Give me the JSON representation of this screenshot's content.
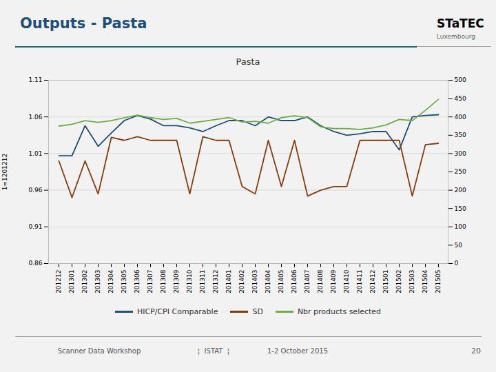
{
  "chart_data": {
    "type": "line",
    "title": "Pasta",
    "ylabel": "1=1201212",
    "categories": [
      "201212",
      "201301",
      "201302",
      "201303",
      "201304",
      "201305",
      "201306",
      "201307",
      "201308",
      "201309",
      "201310",
      "201311",
      "201312",
      "201401",
      "201402",
      "201403",
      "201404",
      "201405",
      "201406",
      "201407",
      "201408",
      "201409",
      "201410",
      "201411",
      "201412",
      "201501",
      "201502",
      "201503",
      "201504",
      "201505"
    ],
    "series": [
      {
        "name": "HICP/CPI Comparable",
        "color": "#1f4e79",
        "values": [
          1.007,
          1.007,
          1.048,
          1.02,
          1.038,
          1.055,
          1.062,
          1.057,
          1.048,
          1.048,
          1.045,
          1.04,
          1.048,
          1.055,
          1.055,
          1.048,
          1.06,
          1.055,
          1.055,
          1.06,
          1.048,
          1.04,
          1.035,
          1.037,
          1.04,
          1.04,
          1.015,
          1.06,
          1.062,
          1.063
        ]
      },
      {
        "name": "SD",
        "color": "#843c0c",
        "values": [
          1.0,
          0.95,
          1.0,
          0.955,
          1.032,
          1.028,
          1.033,
          1.028,
          1.028,
          1.028,
          0.955,
          1.033,
          1.028,
          1.028,
          0.965,
          0.955,
          1.028,
          0.965,
          1.028,
          0.952,
          0.96,
          0.965,
          0.965,
          1.028,
          1.028,
          1.028,
          1.028,
          0.952,
          1.022,
          1.024
        ]
      },
      {
        "name": "Nbr products selected",
        "color": "#70ad47",
        "axis": "y2",
        "values": [
          375,
          380,
          390,
          385,
          390,
          398,
          405,
          398,
          393,
          396,
          383,
          388,
          393,
          398,
          386,
          388,
          383,
          398,
          403,
          398,
          373,
          368,
          368,
          366,
          370,
          378,
          393,
          390,
          418,
          448
        ]
      }
    ],
    "ylim": [
      0.86,
      1.11
    ],
    "yticks": [
      0.86,
      0.91,
      0.96,
      1.01,
      1.06,
      1.11
    ],
    "y2lim": [
      0,
      500
    ],
    "y2ticks": [
      0,
      50,
      100,
      150,
      200,
      250,
      300,
      350,
      400,
      450,
      500
    ],
    "grid": true,
    "legend": "bottom",
    "annotations": [
      "Outputs - Pasta",
      "STaTEC",
      "Luxembourg",
      "Scanner Data Workshop",
      "¦  ISTAT  ¦",
      "1-2 October 2015",
      "20"
    ]
  }
}
